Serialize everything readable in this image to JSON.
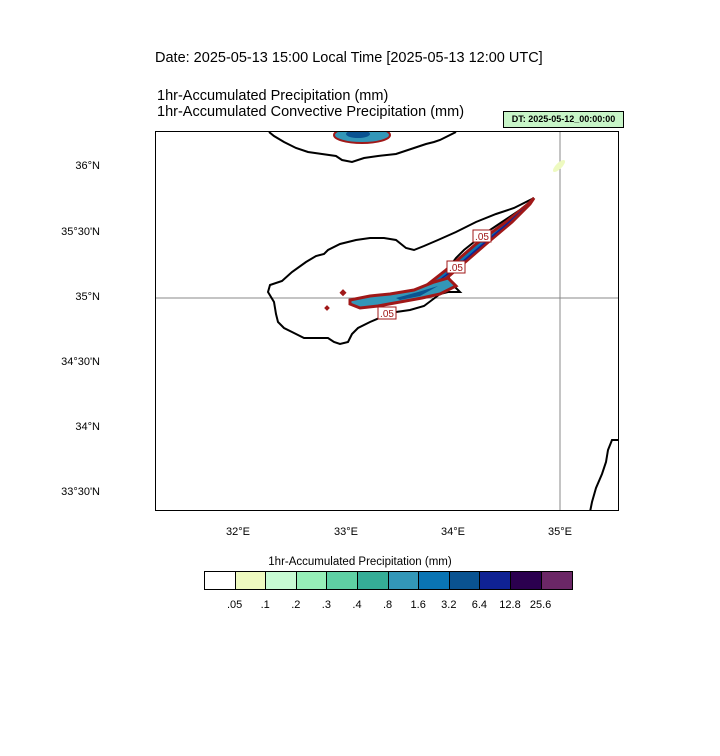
{
  "header": {
    "date_line": "Date: 2025-05-13  15:00 Local Time [2025-05-13  12:00 UTC]",
    "title_1": "1hr-Accumulated Precipitation   (mm)",
    "title_2": "1hr-Accumulated Convective Precipitation   (mm)",
    "dt_label": "DT: 2025-05-12_00:00:00"
  },
  "map": {
    "lat_labels": [
      "36°N",
      "35°30'N",
      "35°N",
      "34°30'N",
      "34°N",
      "33°30'N"
    ],
    "lon_labels": [
      "32°E",
      "33°E",
      "34°E",
      "35°E"
    ],
    "contour_labels": [
      ".05",
      ".05",
      ".05"
    ],
    "reference_line_lat": "35°N",
    "reference_line_lon": "35°E"
  },
  "colorbar": {
    "title": "1hr-Accumulated Precipitation  (mm)",
    "colors": [
      "#ffffff",
      "#eefac0",
      "#c7fbd3",
      "#96efb8",
      "#5fd0a4",
      "#35ad97",
      "#3397b8",
      "#0a74b3",
      "#0a5391",
      "#0f2293",
      "#2b004f",
      "#6b2766"
    ],
    "labels": [
      ".05",
      ".1",
      ".2",
      ".3",
      ".4",
      ".8",
      "1.6",
      "3.2",
      "6.4",
      "12.8",
      "25.6"
    ]
  }
}
